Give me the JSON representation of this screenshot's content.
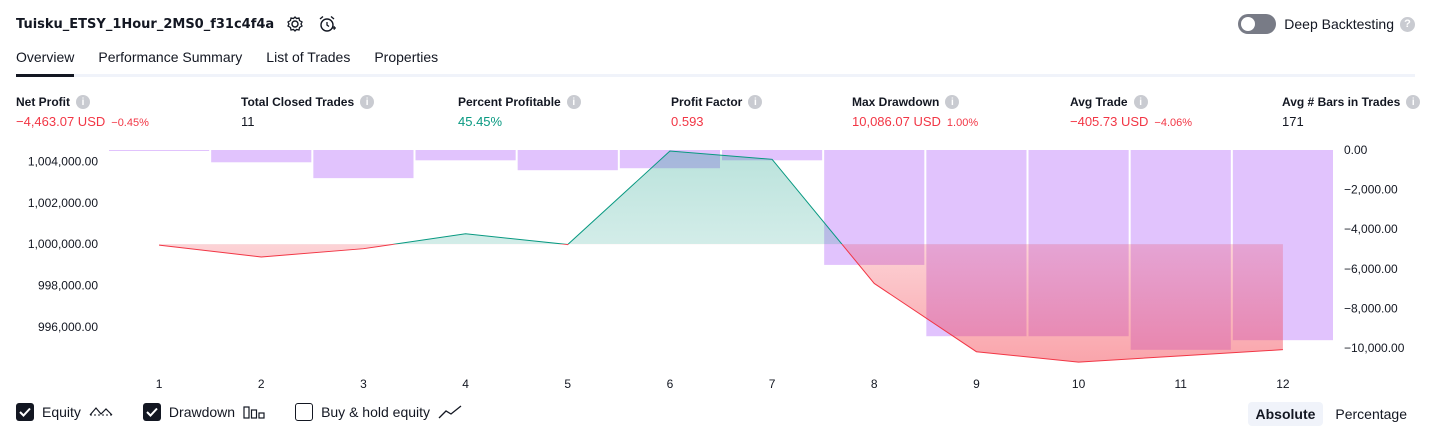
{
  "header": {
    "strategy_name": "Tuisku_ETSY_1Hour_2MS0_f31c4f4a",
    "settings_icon": "gear-icon",
    "alert_icon": "alarm-clock-plus-icon",
    "deep_backtesting_label": "Deep Backtesting",
    "deep_backtesting_enabled": false,
    "help_mark": "?"
  },
  "tabs": [
    {
      "label": "Overview",
      "active": true
    },
    {
      "label": "Performance Summary",
      "active": false
    },
    {
      "label": "List of Trades",
      "active": false
    },
    {
      "label": "Properties",
      "active": false
    }
  ],
  "metrics": [
    {
      "label": "Net Profit",
      "value": "−4,463.07 USD",
      "pct": "−0.45%",
      "color": "#f23645"
    },
    {
      "label": "Total Closed Trades",
      "value": "11",
      "pct": "",
      "color": "#131722"
    },
    {
      "label": "Percent Profitable",
      "value": "45.45%",
      "pct": "",
      "color": "#089981"
    },
    {
      "label": "Profit Factor",
      "value": "0.593",
      "pct": "",
      "color": "#f23645"
    },
    {
      "label": "Max Drawdown",
      "value": "10,086.07 USD",
      "pct": "1.00%",
      "color": "#f23645"
    },
    {
      "label": "Avg Trade",
      "value": "−405.73 USD",
      "pct": "−4.06%",
      "color": "#f23645"
    },
    {
      "label": "Avg # Bars in Trades",
      "value": "171",
      "pct": "",
      "color": "#131722"
    }
  ],
  "chart_data": {
    "type": "line",
    "x": [
      1,
      2,
      3,
      4,
      5,
      6,
      7,
      8,
      9,
      10,
      11,
      12
    ],
    "x_tick_labels": [
      "1",
      "2",
      "3",
      "4",
      "5",
      "6",
      "7",
      "8",
      "9",
      "10",
      "11",
      "12"
    ],
    "left_axis": {
      "ticks": [
        1004000,
        1002000,
        1000000,
        998000,
        996000
      ],
      "tick_labels": [
        "1,004,000.00",
        "1,002,000.00",
        "1,000,000.00",
        "998,000.00",
        "996,000.00"
      ],
      "range": [
        994400,
        1004550
      ]
    },
    "right_axis": {
      "ticks": [
        0,
        -2000,
        -4000,
        -6000,
        -8000,
        -10000
      ],
      "tick_labels": [
        "0.00",
        "−2,000.00",
        "−4,000.00",
        "−6,000.00",
        "−8,000.00",
        "−10,000.00"
      ],
      "range": [
        -10600,
        0
      ]
    },
    "baseline": 1000000,
    "series": [
      {
        "name": "Equity",
        "values": [
          999950,
          999380,
          999780,
          1000500,
          999980,
          1004500,
          1004100,
          998100,
          994800,
          994300,
          994600,
          994900
        ],
        "up_color": "#089981",
        "down_color": "#f23645"
      },
      {
        "name": "Drawdown",
        "values": [
          -50,
          -620,
          -1420,
          -520,
          -1020,
          -920,
          -520,
          -5800,
          -9400,
          -9400,
          -10086,
          -9600
        ],
        "color": "#e1c3fd"
      }
    ],
    "grid": false
  },
  "legend": {
    "items": [
      {
        "label": "Equity",
        "checked": true,
        "glyph": "equity-line-icon"
      },
      {
        "label": "Drawdown",
        "checked": true,
        "glyph": "bars-icon"
      },
      {
        "label": "Buy & hold equity",
        "checked": false,
        "glyph": "trend-line-icon"
      }
    ]
  },
  "scale_toggle": {
    "options": [
      "Absolute",
      "Percentage"
    ],
    "selected": "Absolute"
  }
}
